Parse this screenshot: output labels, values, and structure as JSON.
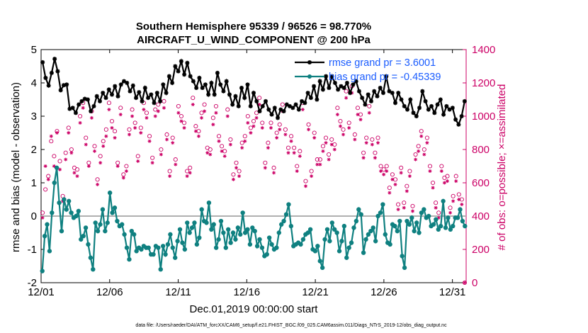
{
  "chart_data": {
    "type": "line",
    "title": "Southern Hemisphere 95339 / 96526 = 98.770%",
    "subtitle": "AIRCRAFT_U_WIND_COMPONENT @ 200 hPa",
    "xlabel": "Dec.01,2019 00:00:00 start",
    "ylabel": "rmse and bias (model - observation)",
    "y2label": "# of obs: o=possible; ×=assimilated",
    "footer": "data file: /Users/raeder/DAI/ATM_forcXX/CAM6_setup/f.e21.FHIST_BGC.f09_025.CAM6assim.011/Diags_NTrS_2019-12/obs_diag_output.nc",
    "xlim": [
      0,
      31
    ],
    "ylim": [
      -2,
      5
    ],
    "y2lim": [
      0,
      1400
    ],
    "x_ticks": [
      0,
      5,
      10,
      15,
      20,
      25,
      30
    ],
    "x_tick_labels": [
      "12/01",
      "12/06",
      "12/11",
      "12/16",
      "12/21",
      "12/26",
      "12/31"
    ],
    "y_ticks": [
      -2,
      -1,
      0,
      1,
      2,
      3,
      4,
      5
    ],
    "y_tick_labels": [
      "-2",
      "-1",
      "0",
      "1",
      "2",
      "3",
      "4",
      "5"
    ],
    "y2_ticks": [
      0,
      200,
      400,
      600,
      800,
      1000,
      1200,
      1400
    ],
    "y2_tick_labels": [
      "0",
      "200",
      "400",
      "600",
      "800",
      "1000",
      "1200",
      "1400"
    ],
    "legend_position": "top-right",
    "series": [
      {
        "name": "rmse grand pr = 3.6001",
        "color": "#000000",
        "values": [
          4.62,
          4.15,
          3.92,
          4.3,
          4.72,
          4.35,
          3.78,
          3.93,
          3.95,
          3.22,
          3.25,
          3.1,
          3.35,
          3.45,
          3.52,
          3.5,
          3.15,
          3.3,
          3.6,
          3.45,
          3.7,
          3.55,
          3.8,
          3.65,
          3.9,
          3.6,
          3.95,
          4.05,
          4.0,
          3.75,
          3.92,
          3.55,
          3.72,
          3.45,
          3.85,
          3.55,
          3.65,
          3.4,
          3.7,
          3.45,
          3.95,
          3.7,
          4.2,
          4.0,
          4.5,
          4.35,
          4.65,
          4.25,
          4.6,
          4.2,
          4.05,
          3.85,
          4.15,
          3.85,
          3.95,
          3.65,
          4.0,
          3.65,
          4.3,
          3.95,
          3.75,
          4.05,
          3.65,
          3.35,
          3.6,
          3.3,
          3.85,
          3.55,
          3.95,
          3.3,
          3.7,
          3.45,
          3.15,
          3.3,
          3.45,
          3.2,
          3.05,
          3.25,
          2.95,
          3.2,
          3.15,
          3.35,
          3.3,
          3.25,
          3.35,
          3.2,
          3.45,
          3.4,
          3.7,
          3.55,
          3.9,
          3.5,
          4.05,
          3.8,
          4.2,
          3.85,
          4.2,
          4.0,
          3.8,
          3.9,
          3.85,
          4.0,
          3.7,
          3.95,
          4.05,
          3.75,
          3.55,
          3.35,
          3.65,
          3.45,
          3.75,
          3.6,
          3.85,
          3.7,
          4.2,
          3.75,
          3.7,
          3.4,
          3.7,
          3.5,
          3.3,
          3.2,
          3.5,
          3.1,
          3.0,
          3.25,
          3.75,
          3.45,
          3.2,
          3.3,
          3.1,
          3.35,
          3.5,
          3.05,
          3.3,
          3.2,
          3.25,
          2.9,
          2.75,
          3.0,
          3.45
        ]
      },
      {
        "name": "bias grand pr = -0.45339",
        "color": "#0f8080",
        "values": [
          -1.65,
          -0.6,
          -0.25,
          -1.05,
          0.1,
          1.0,
          1.45,
          0.4,
          -0.45,
          0.5,
          0.2,
          0.45,
          0.1,
          -0.05,
          0.0,
          0.15,
          -0.7,
          -0.6,
          -0.35,
          -0.85,
          -1.25,
          -1.6,
          -0.2,
          -0.45,
          -0.25,
          0.2,
          -0.45,
          -0.2,
          0.7,
          0.1,
          0.25,
          -0.15,
          -0.3,
          -0.25,
          -0.55,
          -0.95,
          -1.3,
          -0.45,
          -0.55,
          -1.05,
          -0.95,
          -1.0,
          -0.9,
          -0.95,
          -0.95,
          -1.15,
          -1.15,
          -0.9,
          -0.95,
          -1.6,
          -0.9,
          -1.15,
          -0.85,
          -0.55,
          -0.95,
          -1.25,
          -0.75,
          -0.4,
          -0.8,
          -1.0,
          -0.2,
          -0.5,
          -0.35,
          -0.2,
          -0.85,
          -0.65,
          0.2,
          -0.15,
          -0.2,
          0.4,
          -0.4,
          -0.25,
          -0.95,
          -0.7,
          -0.15,
          -0.5,
          -0.95,
          -0.4,
          -0.8,
          -0.5,
          -0.7,
          -0.35,
          -0.55,
          0.1,
          -0.5,
          -0.4,
          -0.85,
          -0.35,
          -0.45,
          -0.9,
          -0.7,
          -0.95,
          -1.2,
          -1.15,
          -0.65,
          -0.85,
          -1.0,
          -0.95,
          -0.5,
          -0.25,
          -0.15,
          0.05,
          0.35,
          -0.3,
          -0.9,
          -0.85,
          -0.8,
          -0.85,
          -0.7,
          -0.55,
          -0.5,
          -0.4,
          -1.0,
          -1.05,
          -0.9,
          -1.35,
          -1.55,
          -0.7,
          -0.4,
          -0.75,
          -0.2,
          -0.4,
          -0.5,
          -1.05,
          -0.75,
          -0.3,
          -1.25,
          -0.95,
          -0.8,
          -0.35,
          -0.15,
          0.2,
          0.05,
          -1.1,
          -0.7,
          -0.55,
          -0.45,
          -0.35,
          -0.75,
          0.0,
          0.1,
          0.35,
          -0.55,
          -0.8,
          -0.85,
          -0.25,
          -0.3,
          -0.45,
          -0.15,
          -1.2,
          -1.55,
          -0.15,
          -0.25,
          -0.05,
          -0.45,
          -0.2,
          -0.5,
          0.1,
          0.2,
          -0.05,
          0.0,
          -0.3,
          -0.25,
          -0.1,
          -0.4,
          -0.3,
          0.45,
          -0.35,
          -0.05,
          -0.4,
          -0.3,
          -0.05,
          -0.05,
          0.2,
          -0.15,
          -0.3
        ]
      }
    ],
    "obs_possible": [
      420,
      560,
      640,
      850,
      760,
      910,
      730,
      520,
      780,
      930,
      800,
      690,
      680,
      1000,
      1080,
      870,
      720,
      1030,
      820,
      620,
      760,
      850,
      920,
      1080,
      970,
      910,
      720,
      1050,
      650,
      700,
      920,
      1040,
      960,
      760,
      930,
      1080,
      1020,
      880,
      750,
      1040,
      1070,
      800,
      1090,
      890,
      670,
      870,
      740,
      1060,
      1000,
      960,
      670,
      690,
      1110,
      940,
      910,
      1020,
      1070,
      810,
      800,
      990,
      1060,
      880,
      820,
      790,
      1040,
      860,
      650,
      720,
      670,
      840,
      880,
      1000,
      930,
      970,
      1020,
      1110,
      960,
      720,
      840,
      960,
      690,
      900,
      950,
      1070,
      920,
      810,
      880,
      810,
      700,
      790,
      1080,
      610,
      950,
      670,
      900,
      740,
      740,
      820,
      870,
      770,
      860,
      830,
      1050,
      970,
      920,
      1150,
      960,
      1180,
      890,
      1050,
      1010,
      780,
      870,
      1060,
      860,
      780,
      870,
      700,
      680,
      700,
      570,
      650,
      620,
      470,
      690,
      480,
      580,
      670,
      460,
      770,
      820,
      910,
      800,
      870,
      700,
      600,
      480,
      420,
      700,
      630,
      640,
      450,
      520,
      640,
      530,
      500,
      0
    ],
    "obs_assimilated": [
      390,
      700,
      620,
      880,
      700,
      900,
      680,
      490,
      740,
      900,
      780,
      660,
      640,
      960,
      1050,
      830,
      700,
      990,
      790,
      590,
      720,
      820,
      880,
      1040,
      930,
      870,
      700,
      1010,
      630,
      670,
      890,
      1000,
      930,
      730,
      900,
      1040,
      990,
      850,
      720,
      1000,
      1030,
      770,
      1050,
      860,
      640,
      840,
      710,
      1020,
      970,
      930,
      640,
      660,
      1070,
      910,
      880,
      990,
      1030,
      780,
      770,
      950,
      1020,
      850,
      790,
      760,
      1000,
      830,
      620,
      690,
      640,
      810,
      850,
      960,
      900,
      940,
      990,
      1070,
      930,
      690,
      810,
      930,
      660,
      870,
      920,
      1030,
      890,
      780,
      850,
      780,
      670,
      760,
      1040,
      580,
      920,
      640,
      870,
      710,
      710,
      790,
      840,
      740,
      830,
      800,
      1010,
      940,
      890,
      1110,
      930,
      1140,
      860,
      1010,
      980,
      750,
      840,
      1020,
      830,
      750,
      840,
      670,
      650,
      670,
      540,
      620,
      590,
      440,
      660,
      450,
      550,
      640,
      430,
      740,
      790,
      880,
      770,
      840,
      670,
      570,
      450,
      390,
      670,
      600,
      610,
      420,
      490,
      610,
      500,
      470,
      0
    ]
  }
}
